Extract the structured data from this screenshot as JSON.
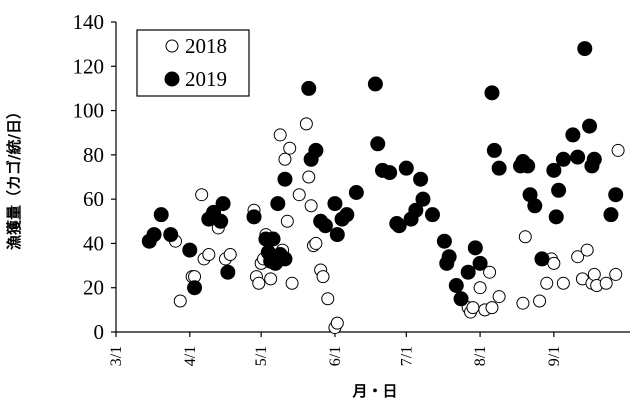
{
  "chart_data": {
    "type": "scatter",
    "xlabel": "月・日",
    "ylabel": "漁獲量（カゴ/統/日）",
    "ylim": [
      0,
      140
    ],
    "yticks": [
      0,
      20,
      40,
      60,
      80,
      100,
      120,
      140
    ],
    "xlim": [
      "3/1",
      "10/3"
    ],
    "xticks": [
      {
        "date": "3/1",
        "label": "3/1"
      },
      {
        "date": "4/1",
        "label": "4/1"
      },
      {
        "date": "5/1",
        "label": "5/1"
      },
      {
        "date": "6/1",
        "label": "6/1"
      },
      {
        "date": "7/1",
        "label": "7/1"
      },
      {
        "date": "8/1",
        "label": "8/1"
      },
      {
        "date": "9/1",
        "label": "9/1"
      }
    ],
    "grid": false,
    "legend_position": "top-left",
    "series": [
      {
        "name": "2018",
        "marker": "open-circle",
        "points": [
          {
            "x": "3/26",
            "y": 41
          },
          {
            "x": "3/28",
            "y": 14
          },
          {
            "x": "4/2",
            "y": 25
          },
          {
            "x": "4/3",
            "y": 25
          },
          {
            "x": "4/6",
            "y": 62
          },
          {
            "x": "4/7",
            "y": 33
          },
          {
            "x": "4/9",
            "y": 35
          },
          {
            "x": "4/13",
            "y": 47
          },
          {
            "x": "4/16",
            "y": 33
          },
          {
            "x": "4/18",
            "y": 35
          },
          {
            "x": "4/28",
            "y": 55
          },
          {
            "x": "4/29",
            "y": 25
          },
          {
            "x": "4/30",
            "y": 22
          },
          {
            "x": "5/1",
            "y": 31
          },
          {
            "x": "5/2",
            "y": 33
          },
          {
            "x": "5/3",
            "y": 44
          },
          {
            "x": "5/5",
            "y": 24
          },
          {
            "x": "5/9",
            "y": 89
          },
          {
            "x": "5/10",
            "y": 37
          },
          {
            "x": "5/11",
            "y": 78
          },
          {
            "x": "5/12",
            "y": 50
          },
          {
            "x": "5/13",
            "y": 83
          },
          {
            "x": "5/14",
            "y": 22
          },
          {
            "x": "5/17",
            "y": 62
          },
          {
            "x": "5/20",
            "y": 94
          },
          {
            "x": "5/21",
            "y": 70
          },
          {
            "x": "5/22",
            "y": 57
          },
          {
            "x": "5/23",
            "y": 39
          },
          {
            "x": "5/24",
            "y": 40
          },
          {
            "x": "5/26",
            "y": 28
          },
          {
            "x": "5/27",
            "y": 25
          },
          {
            "x": "5/29",
            "y": 15
          },
          {
            "x": "6/1",
            "y": 2
          },
          {
            "x": "6/2",
            "y": 4
          },
          {
            "x": "7/27",
            "y": 11
          },
          {
            "x": "7/28",
            "y": 9
          },
          {
            "x": "7/29",
            "y": 11
          },
          {
            "x": "8/1",
            "y": 20
          },
          {
            "x": "8/3",
            "y": 10
          },
          {
            "x": "8/5",
            "y": 27
          },
          {
            "x": "8/6",
            "y": 11
          },
          {
            "x": "8/9",
            "y": 16
          },
          {
            "x": "8/19",
            "y": 13
          },
          {
            "x": "8/20",
            "y": 43
          },
          {
            "x": "8/26",
            "y": 14
          },
          {
            "x": "8/29",
            "y": 22
          },
          {
            "x": "8/31",
            "y": 33
          },
          {
            "x": "9/1",
            "y": 31
          },
          {
            "x": "9/5",
            "y": 22
          },
          {
            "x": "9/11",
            "y": 34
          },
          {
            "x": "9/13",
            "y": 24
          },
          {
            "x": "9/15",
            "y": 37
          },
          {
            "x": "9/17",
            "y": 22
          },
          {
            "x": "9/18",
            "y": 26
          },
          {
            "x": "9/19",
            "y": 21
          },
          {
            "x": "9/23",
            "y": 22
          },
          {
            "x": "9/27",
            "y": 26
          },
          {
            "x": "9/28",
            "y": 82
          }
        ]
      },
      {
        "name": "2019",
        "marker": "filled-circle",
        "points": [
          {
            "x": "3/15",
            "y": 41
          },
          {
            "x": "3/17",
            "y": 44
          },
          {
            "x": "3/20",
            "y": 53
          },
          {
            "x": "3/24",
            "y": 44
          },
          {
            "x": "4/1",
            "y": 37
          },
          {
            "x": "4/3",
            "y": 20
          },
          {
            "x": "4/9",
            "y": 51
          },
          {
            "x": "4/11",
            "y": 54
          },
          {
            "x": "4/14",
            "y": 50
          },
          {
            "x": "4/15",
            "y": 58
          },
          {
            "x": "4/17",
            "y": 27
          },
          {
            "x": "4/28",
            "y": 52
          },
          {
            "x": "5/3",
            "y": 42
          },
          {
            "x": "5/4",
            "y": 36
          },
          {
            "x": "5/5",
            "y": 32
          },
          {
            "x": "5/6",
            "y": 42
          },
          {
            "x": "5/7",
            "y": 31
          },
          {
            "x": "5/8",
            "y": 58
          },
          {
            "x": "5/9",
            "y": 35
          },
          {
            "x": "5/11",
            "y": 69
          },
          {
            "x": "5/11",
            "y": 33
          },
          {
            "x": "5/21",
            "y": 110
          },
          {
            "x": "5/22",
            "y": 78
          },
          {
            "x": "5/24",
            "y": 82
          },
          {
            "x": "5/26",
            "y": 50
          },
          {
            "x": "5/28",
            "y": 48
          },
          {
            "x": "6/1",
            "y": 58
          },
          {
            "x": "6/2",
            "y": 44
          },
          {
            "x": "6/4",
            "y": 51
          },
          {
            "x": "6/6",
            "y": 53
          },
          {
            "x": "6/10",
            "y": 63
          },
          {
            "x": "6/18",
            "y": 112
          },
          {
            "x": "6/19",
            "y": 85
          },
          {
            "x": "6/21",
            "y": 73
          },
          {
            "x": "6/24",
            "y": 72
          },
          {
            "x": "6/27",
            "y": 49
          },
          {
            "x": "6/28",
            "y": 48
          },
          {
            "x": "7/1",
            "y": 74
          },
          {
            "x": "7/3",
            "y": 51
          },
          {
            "x": "7/5",
            "y": 55
          },
          {
            "x": "7/7",
            "y": 69
          },
          {
            "x": "7/8",
            "y": 60
          },
          {
            "x": "7/12",
            "y": 53
          },
          {
            "x": "7/17",
            "y": 41
          },
          {
            "x": "7/18",
            "y": 31
          },
          {
            "x": "7/19",
            "y": 34
          },
          {
            "x": "7/22",
            "y": 21
          },
          {
            "x": "7/24",
            "y": 15
          },
          {
            "x": "7/27",
            "y": 27
          },
          {
            "x": "7/30",
            "y": 38
          },
          {
            "x": "8/1",
            "y": 31
          },
          {
            "x": "8/6",
            "y": 108
          },
          {
            "x": "8/7",
            "y": 82
          },
          {
            "x": "8/9",
            "y": 74
          },
          {
            "x": "8/18",
            "y": 75
          },
          {
            "x": "8/19",
            "y": 77
          },
          {
            "x": "8/21",
            "y": 75
          },
          {
            "x": "8/22",
            "y": 62
          },
          {
            "x": "8/24",
            "y": 57
          },
          {
            "x": "8/27",
            "y": 33
          },
          {
            "x": "9/1",
            "y": 73
          },
          {
            "x": "9/2",
            "y": 52
          },
          {
            "x": "9/3",
            "y": 64
          },
          {
            "x": "9/5",
            "y": 78
          },
          {
            "x": "9/9",
            "y": 89
          },
          {
            "x": "9/11",
            "y": 79
          },
          {
            "x": "9/14",
            "y": 128
          },
          {
            "x": "9/16",
            "y": 93
          },
          {
            "x": "9/17",
            "y": 75
          },
          {
            "x": "9/18",
            "y": 78
          },
          {
            "x": "9/25",
            "y": 53
          },
          {
            "x": "9/27",
            "y": 62
          }
        ]
      }
    ]
  }
}
